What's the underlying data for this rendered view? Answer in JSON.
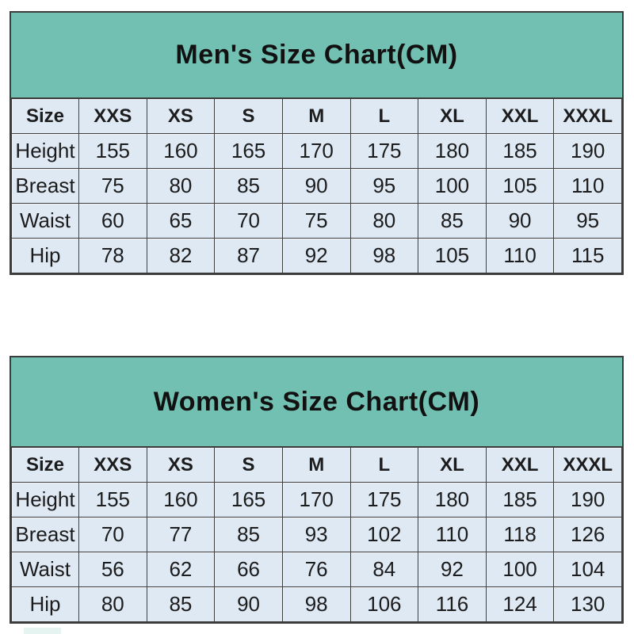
{
  "colors": {
    "header_teal": "#72c0b2",
    "cell_background": "#dfe9f4",
    "grid_border": "#3c3c3c",
    "text": "#1c1c1c"
  },
  "tables": [
    {
      "id": "mens",
      "title": "Men's Size Chart(CM)",
      "columns": [
        "Size",
        "XXS",
        "XS",
        "S",
        "M",
        "L",
        "XL",
        "XXL",
        "XXXL"
      ],
      "rows": [
        {
          "label": "Height",
          "values": [
            "155",
            "160",
            "165",
            "170",
            "175",
            "180",
            "185",
            "190"
          ]
        },
        {
          "label": "Breast",
          "values": [
            "75",
            "80",
            "85",
            "90",
            "95",
            "100",
            "105",
            "110"
          ]
        },
        {
          "label": "Waist",
          "values": [
            "60",
            "65",
            "70",
            "75",
            "80",
            "85",
            "90",
            "95"
          ]
        },
        {
          "label": "Hip",
          "values": [
            "78",
            "82",
            "87",
            "92",
            "98",
            "105",
            "110",
            "115"
          ]
        }
      ]
    },
    {
      "id": "womens",
      "title": "Women's Size Chart(CM)",
      "columns": [
        "Size",
        "XXS",
        "XS",
        "S",
        "M",
        "L",
        "XL",
        "XXL",
        "XXXL"
      ],
      "rows": [
        {
          "label": "Height",
          "values": [
            "155",
            "160",
            "165",
            "170",
            "175",
            "180",
            "185",
            "190"
          ]
        },
        {
          "label": "Breast",
          "values": [
            "70",
            "77",
            "85",
            "93",
            "102",
            "110",
            "118",
            "126"
          ]
        },
        {
          "label": "Waist",
          "values": [
            "56",
            "62",
            "66",
            "76",
            "84",
            "92",
            "100",
            "104"
          ]
        },
        {
          "label": "Hip",
          "values": [
            "80",
            "85",
            "90",
            "98",
            "106",
            "116",
            "124",
            "130"
          ]
        }
      ]
    }
  ]
}
